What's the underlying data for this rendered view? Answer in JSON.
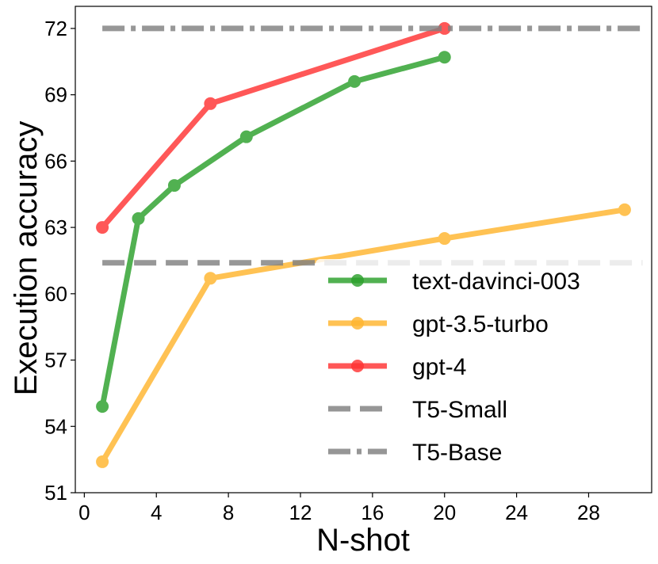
{
  "chart_data": {
    "type": "line",
    "title": "",
    "xlabel": "N-shot",
    "ylabel": "Execution accuracy",
    "xlim": [
      -0.5,
      31.5
    ],
    "ylim": [
      51,
      73
    ],
    "xticks": [
      0,
      4,
      8,
      12,
      16,
      20,
      24,
      28
    ],
    "yticks": [
      51,
      54,
      57,
      60,
      63,
      66,
      69,
      72
    ],
    "grid": false,
    "legend_position": "lower-right",
    "series": [
      {
        "name": "text-davinci-003",
        "color": "#2ca02c",
        "style": "solid",
        "marker": "circle",
        "x": [
          1,
          3,
          5,
          9,
          15,
          20
        ],
        "y": [
          54.9,
          63.4,
          64.9,
          67.1,
          69.6,
          70.7
        ]
      },
      {
        "name": "gpt-3.5-turbo",
        "color": "#ffb52e",
        "style": "solid",
        "marker": "circle",
        "x": [
          1,
          7,
          20,
          30
        ],
        "y": [
          52.4,
          60.7,
          62.5,
          63.8
        ]
      },
      {
        "name": "gpt-4",
        "color": "#ff3333",
        "style": "solid",
        "marker": "circle",
        "x": [
          1,
          7,
          20
        ],
        "y": [
          63.0,
          68.6,
          72.0
        ]
      },
      {
        "name": "T5-Small",
        "color": "#808080",
        "style": "dashed",
        "marker": "none",
        "x": [
          1,
          31
        ],
        "y": [
          61.4,
          61.4
        ]
      },
      {
        "name": "T5-Base",
        "color": "#808080",
        "style": "dashdot",
        "marker": "none",
        "x": [
          1,
          31
        ],
        "y": [
          72.0,
          72.0
        ]
      }
    ]
  }
}
